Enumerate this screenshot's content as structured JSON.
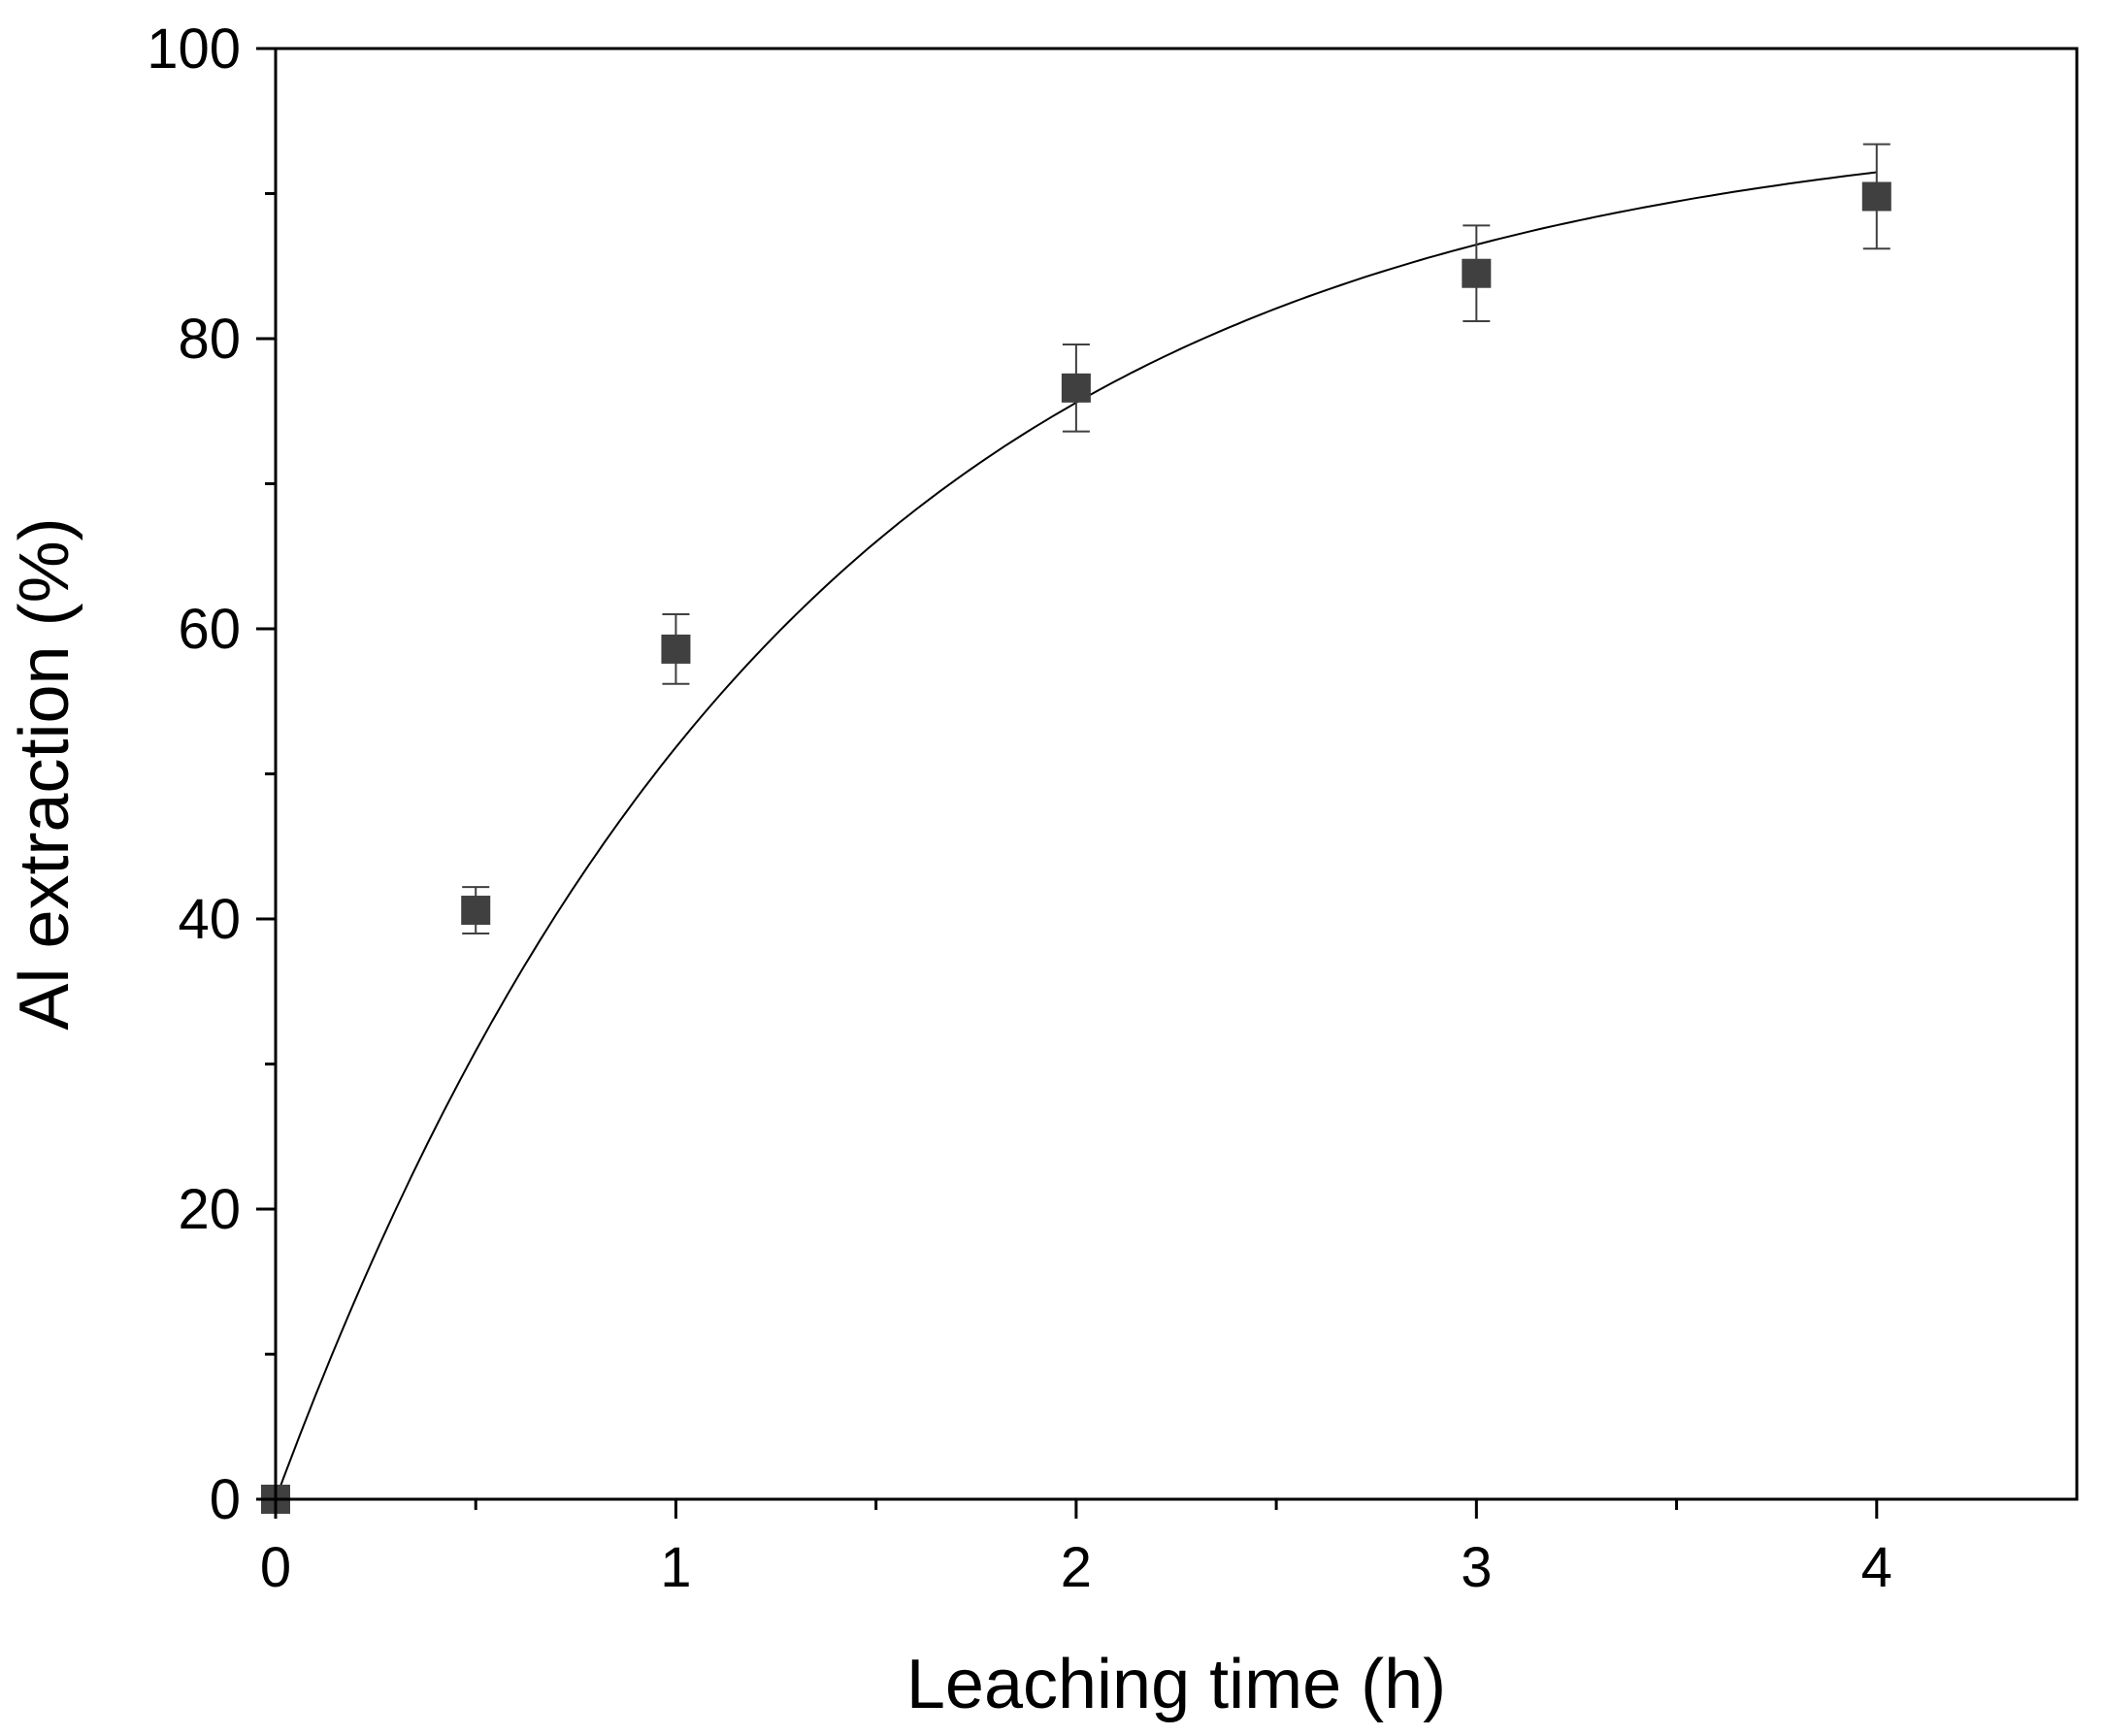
{
  "chart_data": {
    "type": "scatter",
    "title": "",
    "xlabel": "Leaching time (h)",
    "ylabel": "Al extraction (%)",
    "xlim": [
      0,
      4.5
    ],
    "ylim": [
      0,
      100
    ],
    "xticks": [
      0,
      1,
      2,
      3,
      4
    ],
    "xtick_labels": [
      "0",
      "1",
      "2",
      "3",
      "4"
    ],
    "x_minor_ticks": [
      0.5,
      1.5,
      2.5,
      3.5
    ],
    "yticks": [
      0,
      20,
      40,
      60,
      80,
      100
    ],
    "ytick_labels": [
      "0",
      "20",
      "40",
      "60",
      "80",
      "100"
    ],
    "y_minor_ticks": [
      10,
      30,
      50,
      70,
      90
    ],
    "grid": false,
    "legend": "none",
    "series": [
      {
        "marker": "square",
        "color": "#404040",
        "x": [
          0,
          0.5,
          1,
          2,
          3,
          4
        ],
        "y": [
          0,
          40.6,
          58.6,
          76.6,
          84.5,
          89.8
        ],
        "error": [
          0,
          1.6,
          2.4,
          3.0,
          3.3,
          3.6
        ]
      }
    ],
    "fit_curve": {
      "model": "first-order",
      "color": "#000000",
      "a": 95.7,
      "k": 0.78,
      "x_range": [
        0,
        4
      ]
    }
  }
}
